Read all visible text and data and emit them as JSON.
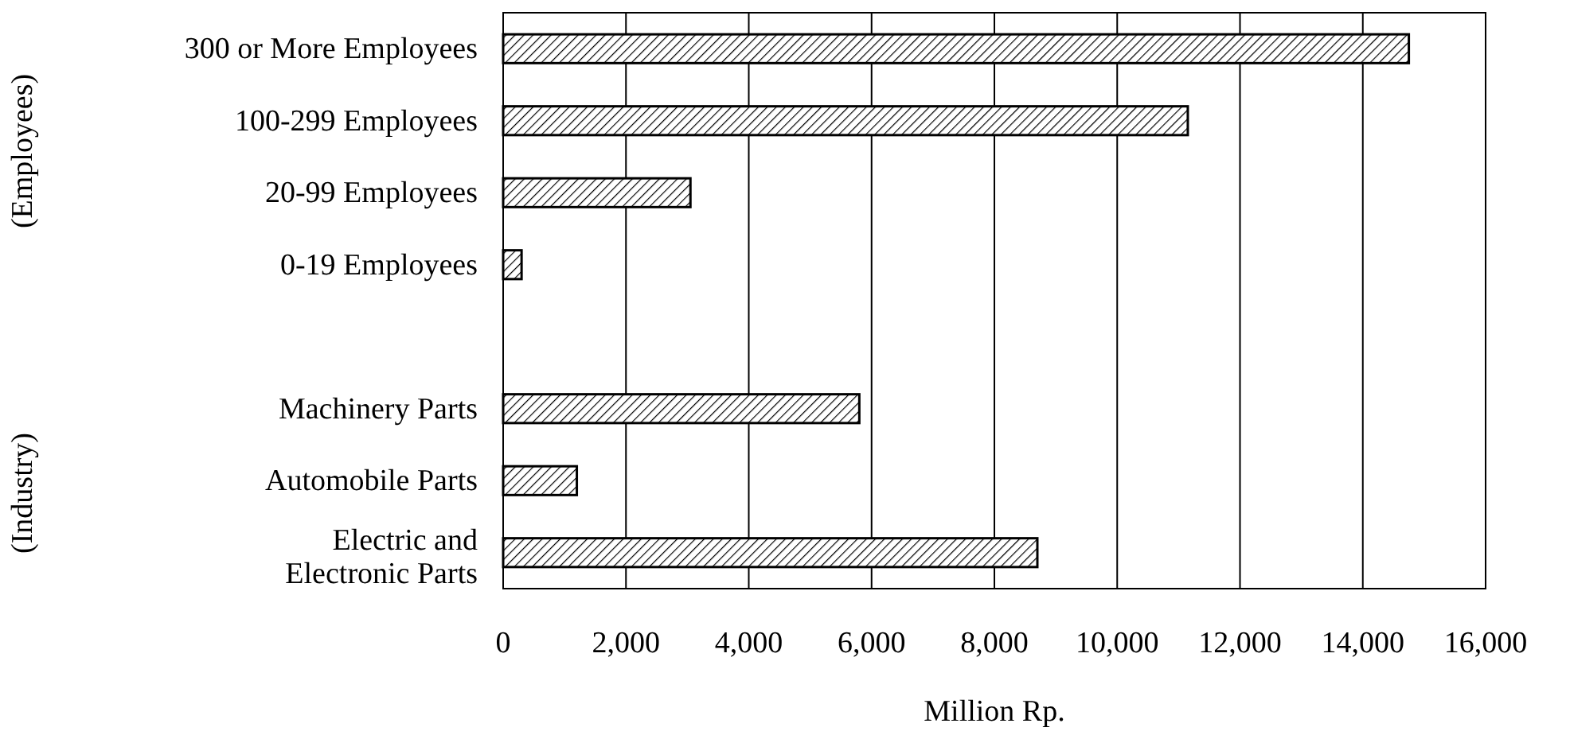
{
  "chart_data": {
    "type": "bar",
    "orientation": "horizontal",
    "categories": [
      "300 or More Employees",
      "100-299 Employees",
      "20-99 Employees",
      "0-19 Employees",
      null,
      "Machinery Parts",
      "Automobile Parts",
      "Electric and Electronic Parts"
    ],
    "values": [
      14750,
      11150,
      3050,
      300,
      null,
      5800,
      1200,
      8700
    ],
    "color": "#000000",
    "xlim": [
      0,
      16000
    ],
    "xticks": [
      {
        "value": 0,
        "label": "0"
      },
      {
        "value": 2000,
        "label": "2,000"
      },
      {
        "value": 4000,
        "label": "4,000"
      },
      {
        "value": 6000,
        "label": "6,000"
      },
      {
        "value": 8000,
        "label": "8,000"
      },
      {
        "value": 10000,
        "label": "10,000"
      },
      {
        "value": 12000,
        "label": "12,000"
      },
      {
        "value": 14000,
        "label": "14,000"
      },
      {
        "value": 16000,
        "label": "16,000"
      }
    ],
    "xlabel": "Million Rp.",
    "grid": "x",
    "annotations": [
      "(Employees)",
      "(Industry)"
    ]
  }
}
